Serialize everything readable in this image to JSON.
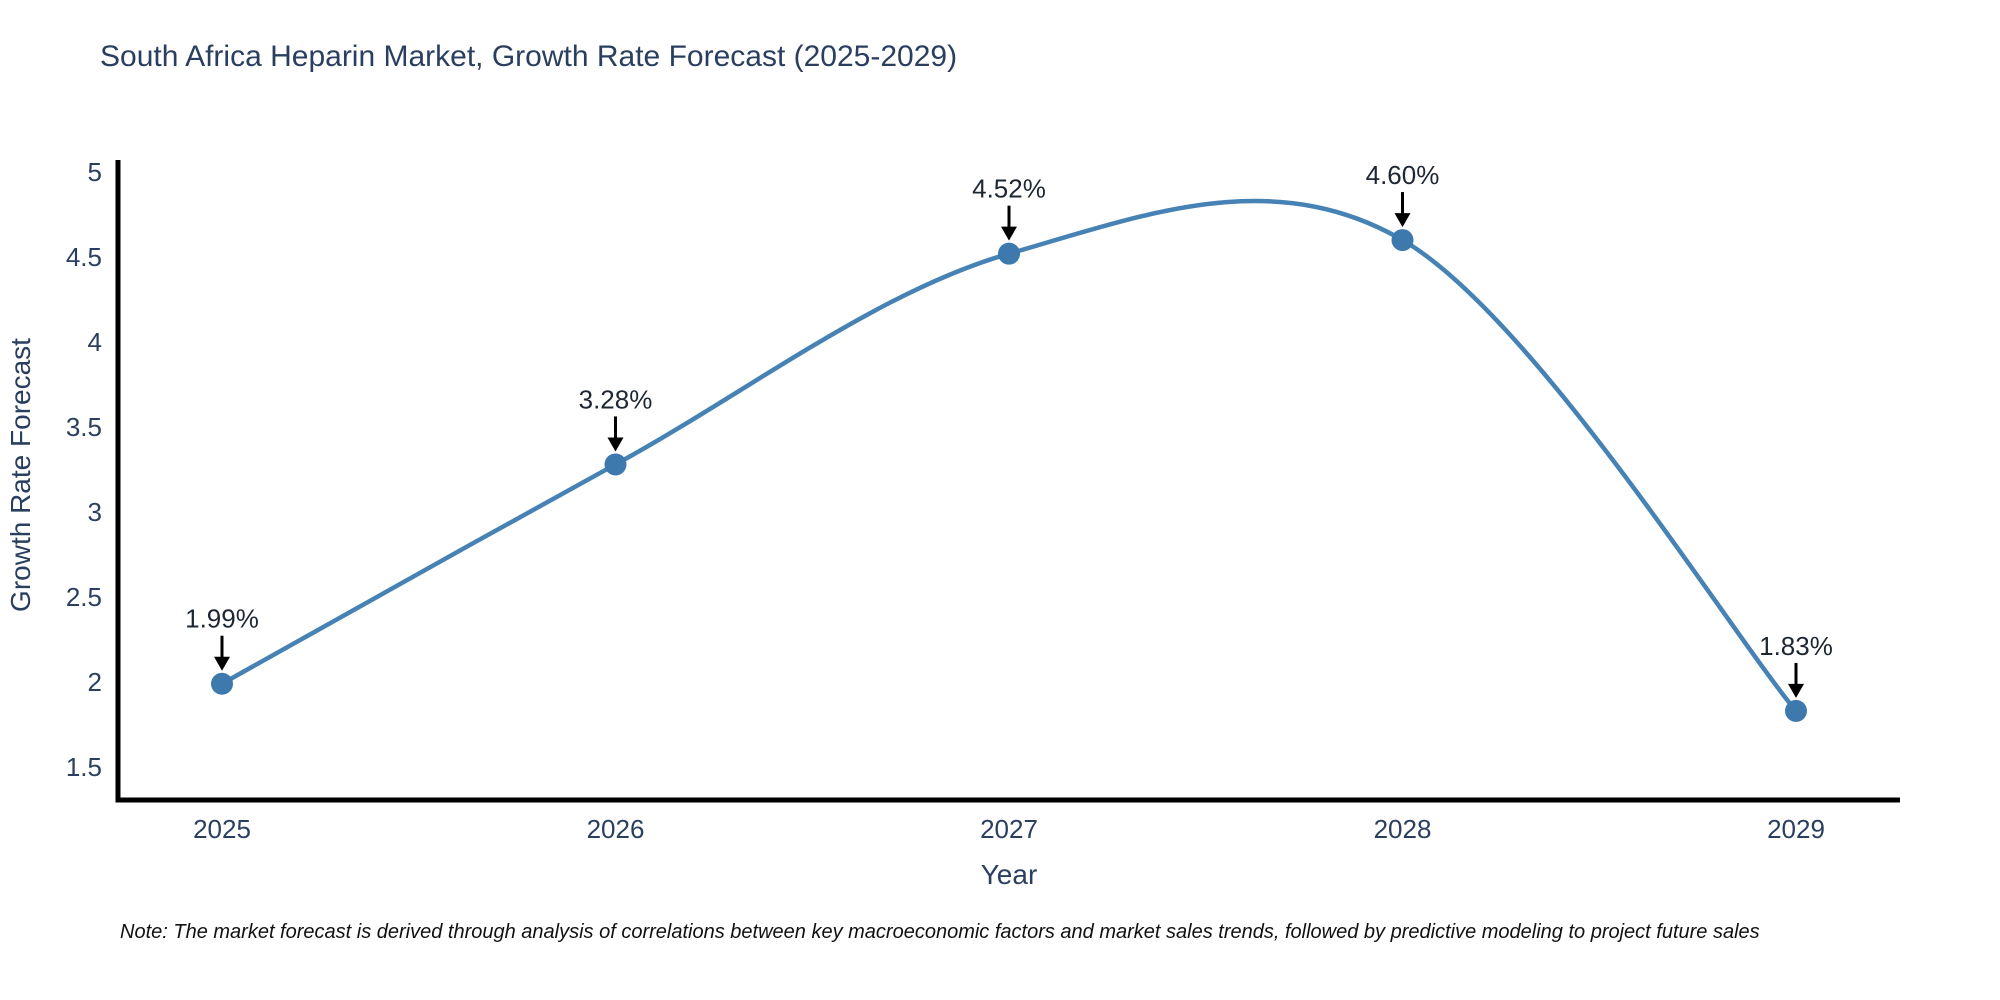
{
  "chart_data": {
    "type": "line",
    "title": "South Africa Heparin Market, Growth Rate Forecast (2025-2029)",
    "xlabel": "Year",
    "ylabel": "Growth Rate Forecast",
    "x": [
      2025,
      2026,
      2027,
      2028,
      2029
    ],
    "values": [
      1.99,
      3.28,
      4.52,
      4.6,
      1.83
    ],
    "point_labels": [
      "1.99%",
      "3.28%",
      "4.52%",
      "4.60%",
      "1.83%"
    ],
    "y_ticks": [
      1.5,
      2,
      2.5,
      3,
      3.5,
      4,
      4.5,
      5
    ],
    "ylim": [
      1.306,
      5.071
    ],
    "line_shape": "spline",
    "grid": false,
    "legend_position": "none",
    "colors": {
      "line": "#4682b4",
      "marker": "#3d79ad",
      "axis": "#000000",
      "text": "#2a3f5f",
      "annotation_arrow": "#000000",
      "note_text": "#111111"
    }
  },
  "note": "Note: The market forecast is derived through analysis of correlations between key macroeconomic factors and market sales trends, followed by predictive modeling to project future sales"
}
